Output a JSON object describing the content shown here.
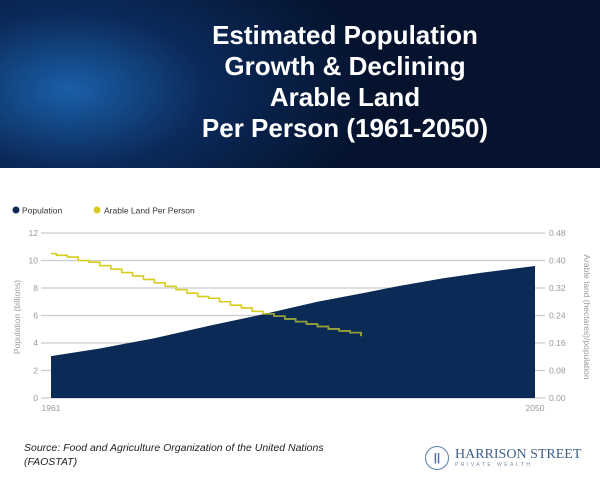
{
  "header": {
    "title_lines": [
      "Estimated Population",
      "Growth & Declining",
      "Arable Land",
      "Per Person (1961-2050)"
    ]
  },
  "chart_data": {
    "type": "area+line",
    "legend": {
      "position": "top-left",
      "items": [
        "Population",
        "Arable Land Per Person"
      ]
    },
    "x_ticks": [
      "1961",
      "2050"
    ],
    "xlim": [
      1961,
      2050
    ],
    "ylabel_left": "Population (billions)",
    "ylabel_right": "Arable land (hectares)/population",
    "ylim_left": [
      0,
      12
    ],
    "ylim_right": [
      0,
      0.48
    ],
    "left_ticks": [
      "0",
      "2",
      "4",
      "6",
      "8",
      "10",
      "12"
    ],
    "right_ticks": [
      "0.00",
      "0.08",
      "0.16",
      "0.24",
      "0.32",
      "0.40",
      "0.48"
    ],
    "grid": true,
    "colors": {
      "population": "#0b2a55",
      "arable": "#d8cc1c",
      "arable_over_area": "#8f9f3c"
    },
    "series": [
      {
        "name": "Population",
        "axis": "left",
        "x": [
          1961,
          1970,
          1980,
          1990,
          1999,
          2010,
          2018,
          2025,
          2033,
          2040,
          2050
        ],
        "values": [
          3.05,
          3.6,
          4.35,
          5.25,
          6.0,
          7.0,
          7.6,
          8.15,
          8.7,
          9.1,
          9.6
        ]
      },
      {
        "name": "Arable Land Per Person",
        "axis": "right",
        "x": [
          1961,
          1962,
          1964,
          1966,
          1968,
          1970,
          1972,
          1974,
          1976,
          1978,
          1980,
          1982,
          1984,
          1986,
          1988,
          1990,
          1992,
          1994,
          1996,
          1998,
          2000,
          2002,
          2004,
          2006,
          2008,
          2010,
          2012,
          2014,
          2016,
          2018
        ],
        "values": [
          0.42,
          0.415,
          0.41,
          0.4,
          0.395,
          0.385,
          0.375,
          0.365,
          0.355,
          0.345,
          0.335,
          0.325,
          0.315,
          0.305,
          0.295,
          0.29,
          0.28,
          0.27,
          0.262,
          0.252,
          0.245,
          0.238,
          0.23,
          0.222,
          0.215,
          0.208,
          0.201,
          0.195,
          0.19,
          0.18
        ]
      }
    ]
  },
  "footer": {
    "source_line1": "Source: Food and Agriculture Organization of the United Nations",
    "source_line2": "(FAOSTAT)",
    "logo_name": "HARRISON STREET",
    "logo_sub": "PRIVATE WEALTH"
  }
}
